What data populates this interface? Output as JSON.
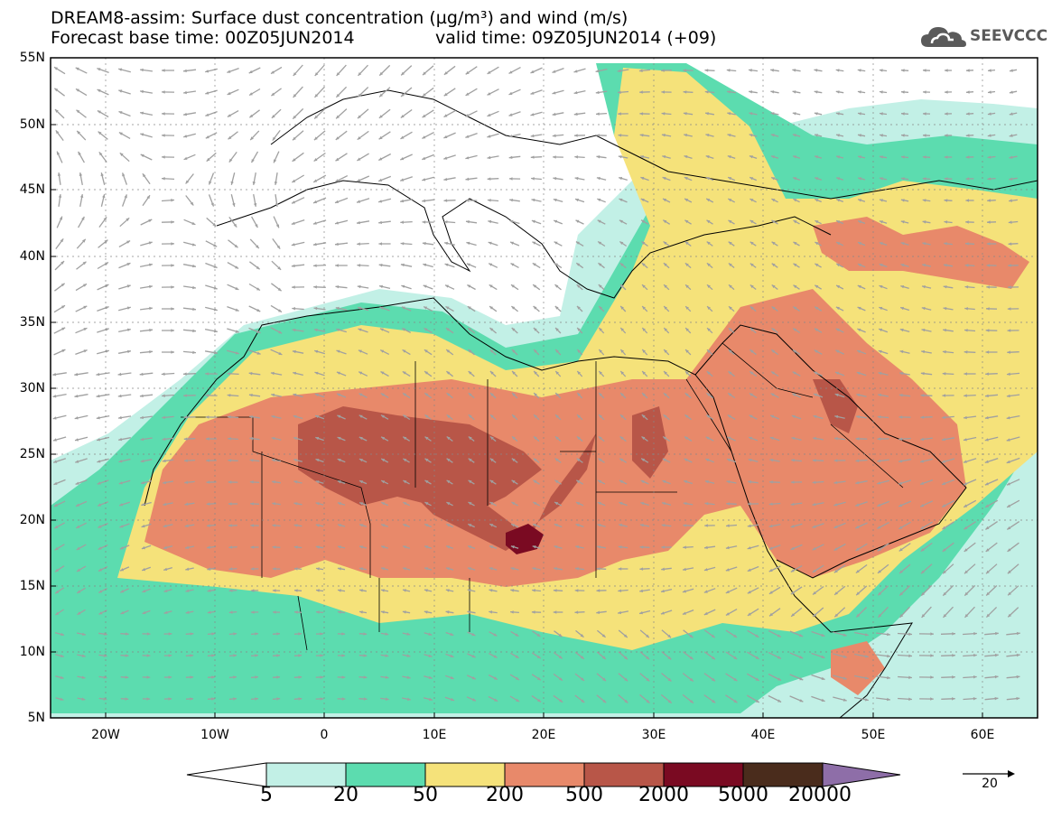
{
  "header": {
    "title_line1": "DREAM8-assim: Surface dust concentration (µg/m³) and wind (m/s)",
    "base_time": "Forecast base time: 00Z05JUN2014",
    "valid_time": "valid time: 09Z05JUN2014 (+09)"
  },
  "logo": {
    "text": "SEEVCCC",
    "icon": "cloud-icon"
  },
  "map": {
    "lon_range": [
      -25,
      65
    ],
    "lat_range": [
      5,
      55
    ],
    "lat_ticks": [
      "55N",
      "50N",
      "45N",
      "40N",
      "35N",
      "30N",
      "25N",
      "20N",
      "15N",
      "10N",
      "5N"
    ],
    "lon_ticks": [
      "20W",
      "10W",
      "0",
      "10E",
      "20E",
      "30E",
      "40E",
      "50E",
      "60E"
    ],
    "wind_arrow_color": "#a0a0a0"
  },
  "colorbar": {
    "levels": [
      "5",
      "20",
      "50",
      "200",
      "500",
      "2000",
      "5000",
      "20000"
    ],
    "colors": [
      "#ffffff",
      "#c2f0e6",
      "#5cdcaf",
      "#f5e27a",
      "#e8896a",
      "#b85648",
      "#7a0a22",
      "#4a2c1c",
      "#8e6ea8"
    ]
  },
  "reference_vector": {
    "label": "20"
  }
}
